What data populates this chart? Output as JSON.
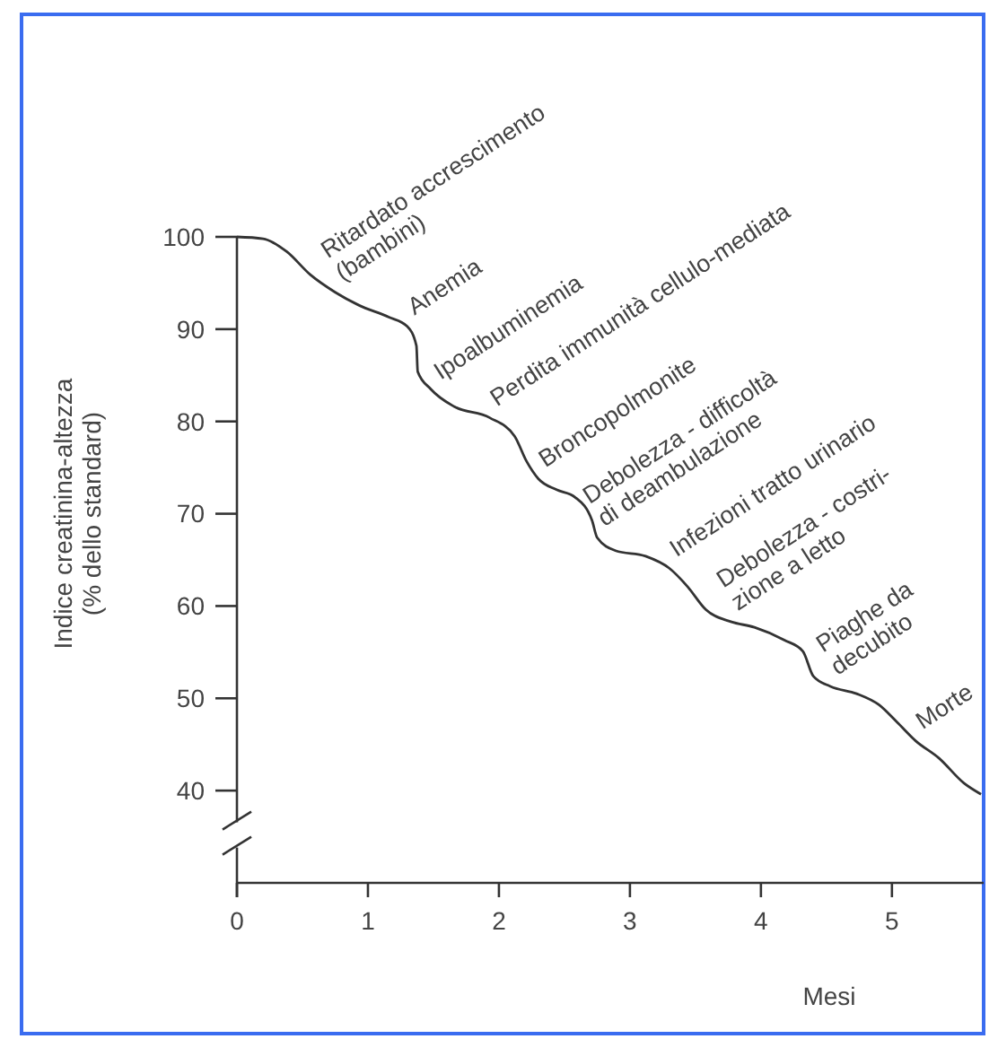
{
  "chart_data": {
    "type": "line",
    "xlabel": "Mesi",
    "ylabel": "Indice creatinina-altezza\n(% dello standard)",
    "x": [
      0,
      0.2,
      0.38,
      0.56,
      0.75,
      0.93,
      1.16,
      1.3,
      1.37,
      1.38,
      1.48,
      1.66,
      1.93,
      2.12,
      2.21,
      2.3,
      2.44,
      2.58,
      2.71,
      2.75,
      2.89,
      3.12,
      3.3,
      3.44,
      3.58,
      3.77,
      3.95,
      4.18,
      4.32,
      4.4,
      4.53,
      4.73,
      4.9,
      5.04,
      5.18,
      5.36,
      5.55,
      5.68
    ],
    "series": [
      {
        "color": "#333333",
        "values": [
          100,
          99.8,
          98.4,
          95.9,
          94,
          92.6,
          91.3,
          90.3,
          88.2,
          85.4,
          83.5,
          81.6,
          80.4,
          78.4,
          75.7,
          73.8,
          72.6,
          71.8,
          69.3,
          67.4,
          66,
          65.4,
          64.1,
          62.1,
          59.6,
          58.3,
          57.7,
          56.3,
          55.1,
          52.4,
          51.3,
          50.5,
          49.3,
          47.4,
          45.4,
          43.5,
          40.8,
          39.6
        ]
      }
    ],
    "xlim": [
      0,
      5.7
    ],
    "xticks": [
      0,
      1,
      2,
      3,
      4,
      5
    ],
    "ylim": [
      30,
      100
    ],
    "yticks": [
      40,
      50,
      60,
      70,
      80,
      90,
      100
    ],
    "grid": false,
    "marker": "none",
    "line_style": "solid",
    "annotations": [
      {
        "text": "Ritardato accrescimento\n(bambini)",
        "x": 0.75,
        "y": 94
      },
      {
        "text": "Anemia",
        "x": 1.3,
        "y": 90.3
      },
      {
        "text": "Ipoalbuminemia",
        "x": 1.5,
        "y": 83.3
      },
      {
        "text": "Perdita immunità cellulo-mediata",
        "x": 1.93,
        "y": 80.4
      },
      {
        "text": "Broncopolmonite",
        "x": 2.3,
        "y": 73.8
      },
      {
        "text": "Debolezza - difficoltà\ndi deambulazione",
        "x": 2.75,
        "y": 67.4
      },
      {
        "text": "Infezioni tratto urinario",
        "x": 3.3,
        "y": 64.1
      },
      {
        "text": "Debolezza - costri-\nzione a letto",
        "x": 3.77,
        "y": 58.3
      },
      {
        "text": "Piaghe da\ndecubito",
        "x": 4.53,
        "y": 51.3
      },
      {
        "text": "Morte",
        "x": 5.18,
        "y": 45.4
      }
    ]
  }
}
